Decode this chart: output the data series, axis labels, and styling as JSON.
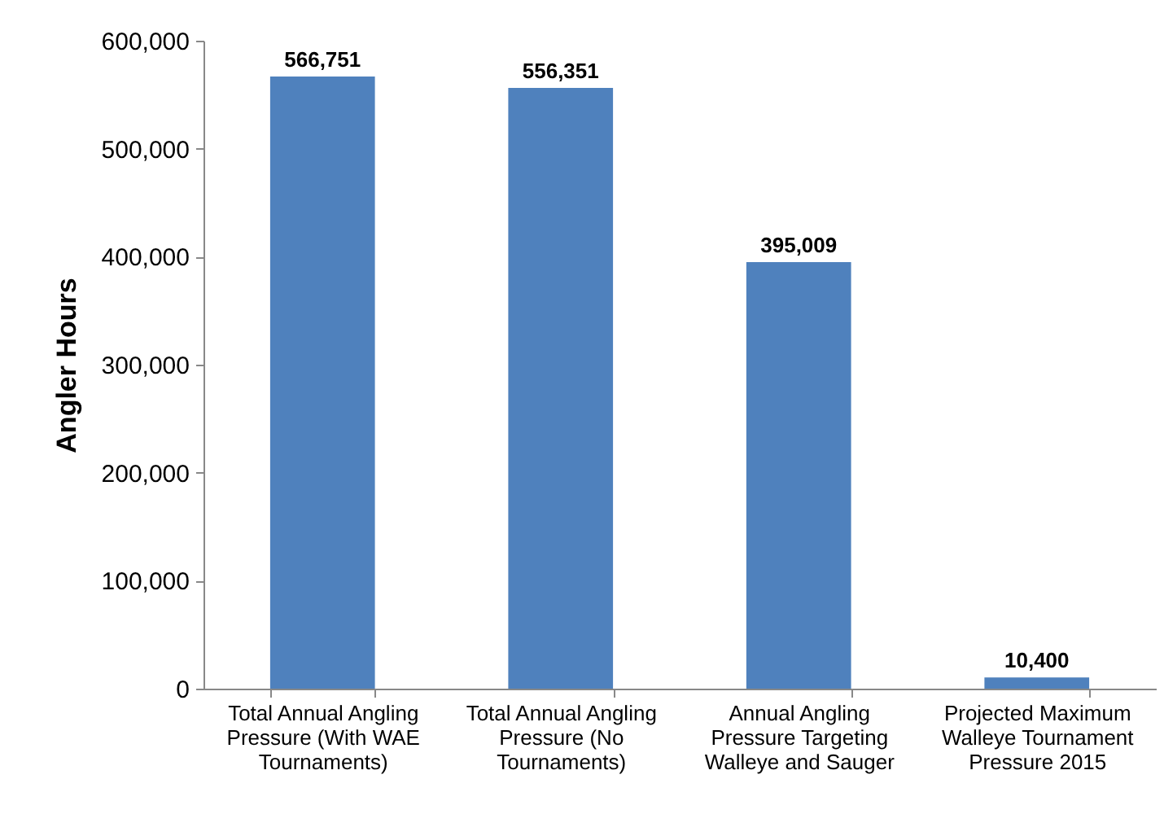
{
  "chart_data": {
    "type": "bar",
    "ylabel": "Angler Hours",
    "categories": [
      "Total Annual Angling Pressure (With WAE Tournaments)",
      "Total Annual Angling Pressure (No Tournaments)",
      "Annual Angling Pressure Targeting Walleye and Sauger",
      "Projected Maximum Walleye Tournament Pressure 2015"
    ],
    "values": [
      566751,
      556351,
      395009,
      10400
    ],
    "value_labels": [
      "566,751",
      "556,351",
      "395,009",
      "10,400"
    ],
    "color": "#4f81bd",
    "ylim": [
      0,
      600000
    ],
    "yticks": [
      0,
      {
        "value": 100000,
        "label": "100,000"
      },
      {
        "value": 200000,
        "label": "200,000"
      },
      {
        "value": 300000,
        "label": "300,000"
      },
      {
        "value": 400000,
        "label": "400,000"
      },
      {
        "value": 500000,
        "label": "500,000"
      },
      {
        "value": 600000,
        "label": "600,000"
      }
    ],
    "grid": false
  }
}
